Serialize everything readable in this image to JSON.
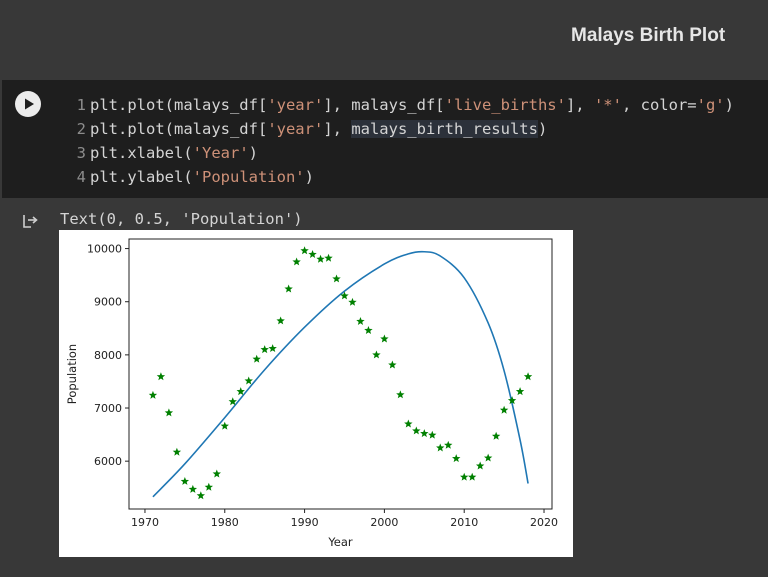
{
  "heading": {
    "title": "Malays Birth Plot"
  },
  "code_cell": {
    "lines": [
      {
        "number": "1",
        "parts": [
          {
            "t": "plt.plot(malays_df[",
            "c": "plain"
          },
          {
            "t": "'year'",
            "c": "str"
          },
          {
            "t": "], malays_df[",
            "c": "plain"
          },
          {
            "t": "'live_births'",
            "c": "str"
          },
          {
            "t": "], ",
            "c": "plain"
          },
          {
            "t": "'*'",
            "c": "str"
          },
          {
            "t": ", color=",
            "c": "plain"
          },
          {
            "t": "'g'",
            "c": "str"
          },
          {
            "t": ")",
            "c": "plain"
          }
        ]
      },
      {
        "number": "2",
        "parts": [
          {
            "t": "plt.plot(malays_df[",
            "c": "plain"
          },
          {
            "t": "'year'",
            "c": "str"
          },
          {
            "t": "], ",
            "c": "plain"
          },
          {
            "t": "malays_birth_results",
            "c": "hl"
          },
          {
            "t": ")",
            "c": "plain"
          }
        ]
      },
      {
        "number": "3",
        "parts": [
          {
            "t": "plt.xlabel(",
            "c": "plain"
          },
          {
            "t": "'Year'",
            "c": "str"
          },
          {
            "t": ")",
            "c": "plain"
          }
        ]
      },
      {
        "number": "4",
        "parts": [
          {
            "t": "plt.ylabel(",
            "c": "plain"
          },
          {
            "t": "'Population'",
            "c": "str"
          },
          {
            "t": ")",
            "c": "plain"
          }
        ]
      }
    ]
  },
  "output": {
    "text": "Text(0, 0.5, 'Population')"
  },
  "icons": {
    "run": "play-icon",
    "output": "output-arrow-icon"
  },
  "colors": {
    "points": "#008000",
    "line": "#1f77b4"
  },
  "chart_data": {
    "type": "line",
    "xlabel": "Year",
    "ylabel": "Population",
    "xlim": [
      1968,
      2021
    ],
    "ylim": [
      5100,
      10180
    ],
    "xticks": [
      1970,
      1980,
      1990,
      2000,
      2010,
      2020
    ],
    "yticks": [
      6000,
      7000,
      8000,
      9000,
      10000
    ],
    "grid": false,
    "series": [
      {
        "marker": "*",
        "color": "#008000",
        "x": [
          1971,
          1972,
          1973,
          1974,
          1975,
          1976,
          1977,
          1978,
          1979,
          1980,
          1981,
          1982,
          1983,
          1984,
          1985,
          1986,
          1987,
          1988,
          1989,
          1990,
          1991,
          1992,
          1993,
          1994,
          1995,
          1996,
          1997,
          1998,
          1999,
          2000,
          2001,
          2002,
          2003,
          2004,
          2005,
          2006,
          2007,
          2008,
          2009,
          2010,
          2011,
          2012,
          2013,
          2014,
          2015,
          2016,
          2017,
          2018
        ],
        "y": [
          7240,
          7590,
          6910,
          6170,
          5620,
          5470,
          5350,
          5510,
          5760,
          6660,
          7120,
          7310,
          7510,
          7920,
          8100,
          8120,
          8640,
          9240,
          9750,
          9960,
          9890,
          9800,
          9820,
          9430,
          9110,
          8990,
          8630,
          8460,
          8000,
          8300,
          7810,
          7250,
          6700,
          6570,
          6520,
          6490,
          6250,
          6300,
          6050,
          5700,
          5700,
          5910,
          6060,
          6470,
          6960,
          7140,
          7310,
          7590
        ]
      },
      {
        "color": "#1f77b4",
        "x": [
          1971,
          1975,
          1980,
          1985,
          1990,
          1995,
          2000,
          2003,
          2005,
          2007,
          2010,
          2013,
          2015,
          2017,
          2018
        ],
        "y": [
          5330,
          5950,
          6820,
          7720,
          8520,
          9200,
          9710,
          9900,
          9940,
          9860,
          9450,
          8600,
          7700,
          6400,
          5580
        ]
      }
    ]
  }
}
